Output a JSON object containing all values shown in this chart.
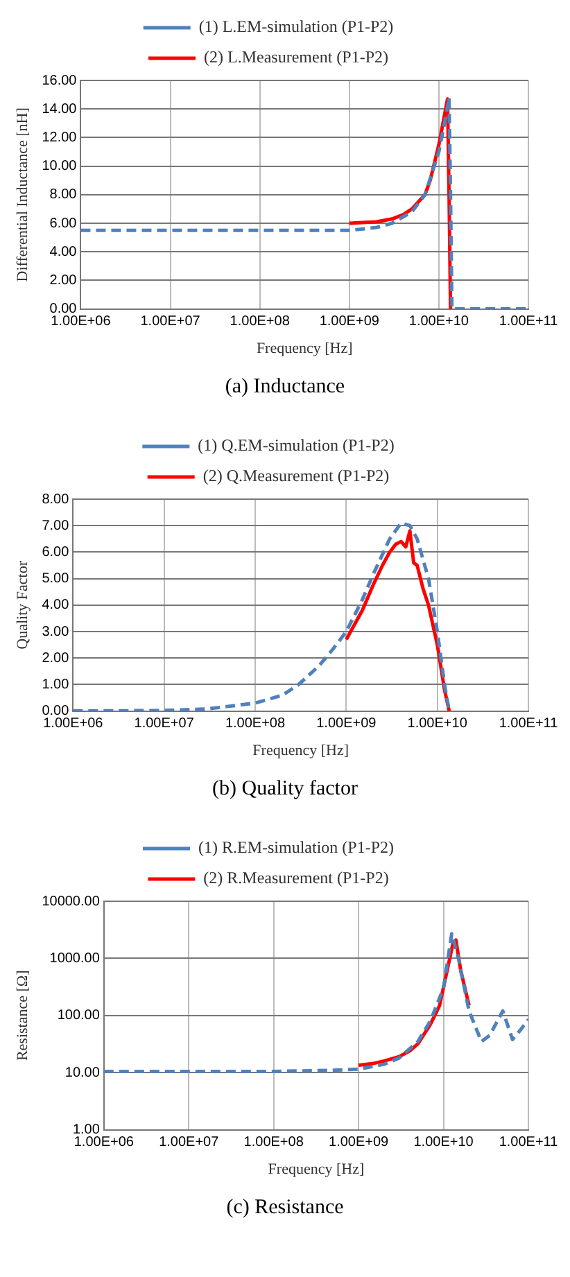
{
  "chart_data": [
    {
      "type": "line",
      "xlabel": "Frequency [Hz]",
      "ylabel": "Differential Inductance [nH]",
      "log": "x",
      "grid": true,
      "legend": "top",
      "marker": "none",
      "annotations": [
        "(a) Inductance"
      ],
      "xlim": [
        1000000,
        100000000000
      ],
      "xticks": [
        {
          "value": 1000000,
          "label": "1.00E+06"
        },
        {
          "value": 10000000,
          "label": "1.00E+07"
        },
        {
          "value": 100000000,
          "label": "1.00E+08"
        },
        {
          "value": 1000000000,
          "label": "1.00E+09"
        },
        {
          "value": 10000000000,
          "label": "1.00E+10"
        },
        {
          "value": 100000000000,
          "label": "1.00E+11"
        }
      ],
      "ylim": [
        0,
        16
      ],
      "yticks": [
        {
          "value": 0,
          "label": "0.00"
        },
        {
          "value": 2,
          "label": "2.00"
        },
        {
          "value": 4,
          "label": "4.00"
        },
        {
          "value": 6,
          "label": "6.00"
        },
        {
          "value": 8,
          "label": "8.00"
        },
        {
          "value": 10,
          "label": "10.00"
        },
        {
          "value": 12,
          "label": "12.00"
        },
        {
          "value": 14,
          "label": "14.00"
        },
        {
          "value": 16,
          "label": "16.00"
        }
      ],
      "series": [
        {
          "name": "(1) L.EM-simulation (P1-P2)",
          "color": "#4f81bd",
          "line_style": "dashed",
          "x": [
            1000000,
            100000000,
            1000000000,
            2000000000,
            3000000000,
            5000000000,
            7000000000,
            10000000000,
            12000000000,
            13000000000,
            13500000000,
            14000000000,
            100000000000
          ],
          "values": [
            5.5,
            5.5,
            5.5,
            5.7,
            6.0,
            6.8,
            8.0,
            11,
            13.5,
            14.8,
            8,
            0,
            0
          ]
        },
        {
          "name": "(2) L.Measurement (P1-P2)",
          "color": "#ff0000",
          "line_style": "solid",
          "x": [
            1000000000,
            2000000000,
            3000000000,
            4000000000,
            5000000000,
            7000000000,
            8000000000,
            10000000000,
            11500000000,
            12500000000,
            13000000000,
            13500000000
          ],
          "values": [
            6.0,
            6.1,
            6.3,
            6.6,
            7.0,
            8.0,
            9.0,
            11.5,
            13.5,
            14.7,
            8,
            0
          ]
        }
      ]
    },
    {
      "type": "line",
      "xlabel": "Frequency [Hz]",
      "ylabel": "Quality Factor",
      "log": "x",
      "grid": true,
      "legend": "top",
      "marker": "none",
      "annotations": [
        "(b) Quality factor"
      ],
      "xlim": [
        1000000,
        100000000000
      ],
      "xticks": [
        {
          "value": 1000000,
          "label": "1.00E+06"
        },
        {
          "value": 10000000,
          "label": "1.00E+07"
        },
        {
          "value": 100000000,
          "label": "1.00E+08"
        },
        {
          "value": 1000000000,
          "label": "1.00E+09"
        },
        {
          "value": 10000000000,
          "label": "1.00E+10"
        },
        {
          "value": 100000000000,
          "label": "1.00E+11"
        }
      ],
      "ylim": [
        0,
        8
      ],
      "yticks": [
        {
          "value": 0,
          "label": "0.00"
        },
        {
          "value": 1,
          "label": "1.00"
        },
        {
          "value": 2,
          "label": "2.00"
        },
        {
          "value": 3,
          "label": "3.00"
        },
        {
          "value": 4,
          "label": "4.00"
        },
        {
          "value": 5,
          "label": "5.00"
        },
        {
          "value": 6,
          "label": "6.00"
        },
        {
          "value": 7,
          "label": "7.00"
        },
        {
          "value": 8,
          "label": "8.00"
        }
      ],
      "series": [
        {
          "name": "(1) Q.EM-simulation (P1-P2)",
          "color": "#4f81bd",
          "line_style": "dashed",
          "x": [
            1000000,
            10000000,
            30000000,
            100000000,
            200000000,
            300000000,
            500000000,
            700000000,
            1000000000,
            1500000000,
            2000000000,
            3000000000,
            4000000000,
            5000000000,
            6000000000,
            8000000000,
            10000000000,
            12000000000,
            13500000000
          ],
          "values": [
            0,
            0.02,
            0.08,
            0.3,
            0.6,
            1.0,
            1.7,
            2.3,
            3.0,
            4.2,
            5.2,
            6.5,
            7.1,
            7.0,
            6.5,
            5.0,
            3.0,
            1.0,
            0
          ]
        },
        {
          "name": "(2) Q.Measurement (P1-P2)",
          "color": "#ff0000",
          "line_style": "solid",
          "x": [
            1000000000,
            1500000000,
            2000000000,
            2500000000,
            3000000000,
            3500000000,
            4000000000,
            4500000000,
            5000000000,
            5500000000,
            6000000000,
            7000000000,
            8000000000,
            10000000000,
            12000000000,
            13500000000
          ],
          "values": [
            2.7,
            3.8,
            4.8,
            5.5,
            6.0,
            6.3,
            6.4,
            6.2,
            6.8,
            5.6,
            5.5,
            4.6,
            4.0,
            2.5,
            0.8,
            0
          ]
        }
      ]
    },
    {
      "type": "line",
      "xlabel": "Frequency [Hz]",
      "ylabel": "Resistance [Ω]",
      "log": "xy",
      "grid": true,
      "legend": "top",
      "marker": "none",
      "annotations": [
        "(c) Resistance"
      ],
      "xlim": [
        1000000,
        100000000000
      ],
      "xticks": [
        {
          "value": 1000000,
          "label": "1.00E+06"
        },
        {
          "value": 10000000,
          "label": "1.00E+07"
        },
        {
          "value": 100000000,
          "label": "1.00E+08"
        },
        {
          "value": 1000000000,
          "label": "1.00E+09"
        },
        {
          "value": 10000000000,
          "label": "1.00E+10"
        },
        {
          "value": 100000000000,
          "label": "1.00E+11"
        }
      ],
      "ylim": [
        1,
        10000
      ],
      "yticks": [
        {
          "value": 1,
          "label": "1.00"
        },
        {
          "value": 10,
          "label": "10.00"
        },
        {
          "value": 100,
          "label": "100.00"
        },
        {
          "value": 1000,
          "label": "1000.00"
        },
        {
          "value": 10000,
          "label": "10000.00"
        }
      ],
      "series": [
        {
          "name": "(1) R.EM-simulation (P1-P2)",
          "color": "#4f81bd",
          "line_style": "dashed",
          "x": [
            1000000,
            100000000,
            500000000,
            1000000000,
            2000000000,
            3000000000,
            5000000000,
            7000000000,
            10000000000,
            12500000000,
            15000000000,
            20000000000,
            28000000000,
            35000000000,
            50000000000,
            65000000000,
            80000000000,
            100000000000
          ],
          "values": [
            10.5,
            10.5,
            11,
            11.5,
            14,
            18,
            35,
            80,
            300,
            2700,
            1000,
            120,
            35,
            45,
            120,
            38,
            55,
            85
          ]
        },
        {
          "name": "(2) R.Measurement (P1-P2)",
          "color": "#ff0000",
          "line_style": "solid",
          "x": [
            1000000000,
            1500000000,
            2000000000,
            3000000000,
            4000000000,
            5000000000,
            7000000000,
            9000000000,
            11000000000,
            13000000000,
            14000000000,
            16000000000,
            20000000000
          ],
          "values": [
            13.5,
            14.5,
            16,
            19,
            24,
            32,
            70,
            150,
            600,
            1900,
            2100,
            600,
            150
          ]
        }
      ]
    }
  ]
}
